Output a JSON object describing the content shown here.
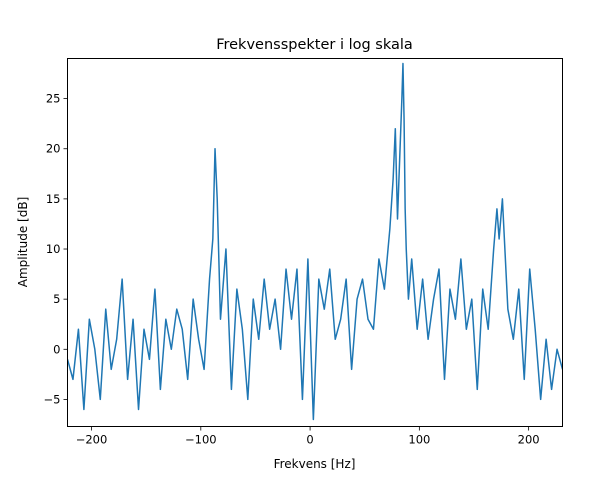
{
  "chart_data": {
    "type": "line",
    "title": "Frekvensspekter i log skala",
    "xlabel": "Frekvens [Hz]",
    "ylabel": "Amplitude [dB]",
    "xlim": [
      -222,
      231
    ],
    "ylim": [
      -7.7,
      29.0
    ],
    "xticks": [
      -200,
      -100,
      0,
      100,
      200
    ],
    "xtick_labels": [
      "−200",
      "−100",
      "0",
      "100",
      "200"
    ],
    "yticks": [
      -5,
      0,
      5,
      10,
      15,
      20,
      25
    ],
    "ytick_labels": [
      "−5",
      "0",
      "5",
      "10",
      "15",
      "20",
      "25"
    ],
    "grid": false,
    "series": [
      {
        "color": "#1f77b4",
        "x": [
          -222,
          -217,
          -212,
          -207,
          -202,
          -197,
          -192,
          -187,
          -182,
          -177,
          -172,
          -167,
          -162,
          -157,
          -152,
          -147,
          -142,
          -137,
          -132,
          -127,
          -122,
          -117,
          -112,
          -107,
          -102,
          -97,
          -92,
          -89,
          -87,
          -85,
          -82,
          -77,
          -72,
          -67,
          -62,
          -57,
          -52,
          -47,
          -42,
          -37,
          -32,
          -27,
          -22,
          -17,
          -12,
          -7,
          -2,
          3,
          8,
          13,
          18,
          23,
          28,
          33,
          38,
          43,
          48,
          53,
          58,
          63,
          68,
          73,
          76,
          78,
          80,
          82,
          84,
          85,
          86,
          87,
          88,
          90,
          93,
          98,
          103,
          108,
          113,
          118,
          123,
          128,
          133,
          138,
          143,
          148,
          153,
          158,
          163,
          168,
          171,
          173,
          176,
          181,
          186,
          191,
          196,
          201,
          206,
          211,
          216,
          221,
          226,
          231
        ],
        "values": [
          -1,
          -3,
          2,
          -6,
          3,
          0,
          -5,
          4,
          -2,
          1,
          7,
          -3,
          3,
          -6,
          2,
          -1,
          6,
          -4,
          3,
          0,
          4,
          2,
          -3,
          5,
          1,
          -2,
          7,
          11,
          20,
          15,
          3,
          10,
          -4,
          6,
          2,
          -5,
          5,
          1,
          7,
          2,
          5,
          0,
          8,
          3,
          8,
          -5,
          9,
          -7,
          7,
          4,
          8,
          1,
          3,
          7,
          -2,
          5,
          7,
          3,
          2,
          9,
          6,
          12,
          17,
          22,
          13,
          19,
          25,
          28.5,
          23,
          14,
          10,
          5,
          9,
          2,
          7,
          1,
          5,
          8,
          -3,
          6,
          3,
          9,
          2,
          5,
          -4,
          6,
          2,
          10,
          14,
          11,
          15,
          4,
          1,
          6,
          -3,
          8,
          2,
          -5,
          1,
          -4,
          0,
          -2
        ]
      }
    ]
  }
}
